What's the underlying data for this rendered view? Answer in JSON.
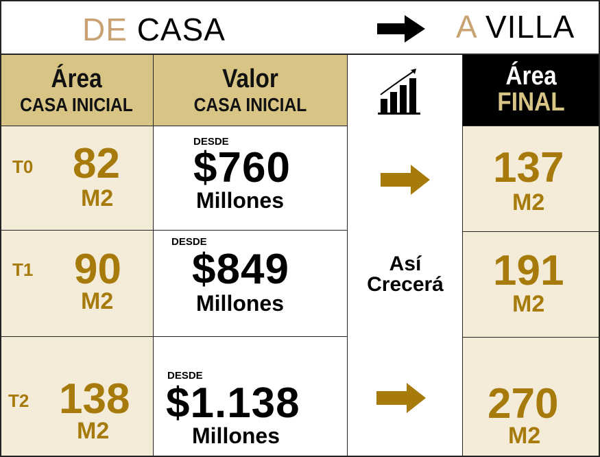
{
  "title": {
    "from_accent": "DE",
    "from": "CASA",
    "to_accent": "A",
    "to": "VILLA"
  },
  "colors": {
    "tan": "#d8c485",
    "cream": "#f4ecd9",
    "gold": "#a67a0b",
    "accent": "#c9a273",
    "black": "#000000"
  },
  "headers": {
    "area": {
      "title": "Área",
      "sub": "CASA INICIAL"
    },
    "valor": {
      "title": "Valor",
      "sub": "CASA INICIAL"
    },
    "growth_icon": "bar-chart-growth-icon",
    "final": {
      "title": "Área",
      "sub": "FINAL"
    }
  },
  "middle_text": {
    "line1": "Así",
    "line2": "Crecerá"
  },
  "rows": [
    {
      "type": "T0",
      "area": "82",
      "unit": "M2",
      "desde": "DESDE",
      "price": "$760",
      "millones": "Millones",
      "final": "137",
      "final_unit": "M2"
    },
    {
      "type": "T1",
      "area": "90",
      "unit": "M2",
      "desde": "DESDE",
      "price": "$849",
      "millones": "Millones",
      "final": "191",
      "final_unit": "M2"
    },
    {
      "type": "T2",
      "area": "138",
      "unit": "M2",
      "desde": "DESDE",
      "price": "$1.138",
      "millones": "Millones",
      "final": "270",
      "final_unit": "M2"
    }
  ]
}
